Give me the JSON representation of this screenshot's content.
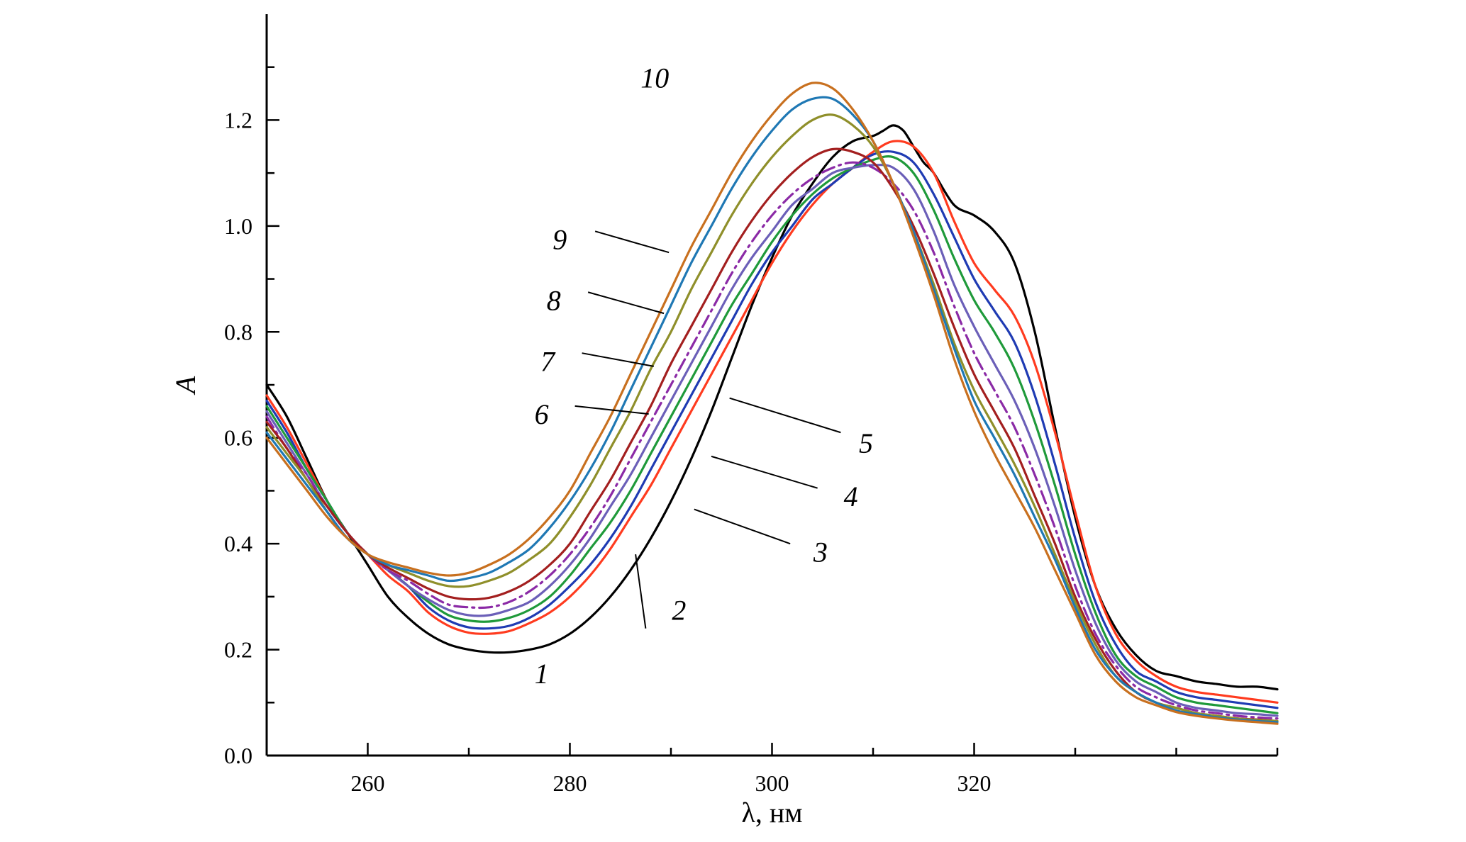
{
  "chart_data": {
    "type": "line",
    "title": "",
    "xlabel": "λ, нм",
    "ylabel": "A",
    "xlim": [
      250,
      350
    ],
    "ylim": [
      0,
      1.4
    ],
    "x_ticks": [
      260,
      280,
      300,
      320
    ],
    "y_ticks": [
      0.0,
      0.2,
      0.4,
      0.6,
      0.8,
      1.0,
      1.2
    ],
    "grid": false,
    "legend": "none",
    "series": [
      {
        "name": "1",
        "color": "#000000",
        "dash": "solid",
        "x": [
          250,
          252,
          254,
          256,
          258,
          260,
          262,
          264,
          266,
          268,
          270,
          272,
          274,
          276,
          278,
          280,
          282,
          284,
          286,
          288,
          290,
          292,
          294,
          296,
          298,
          300,
          302,
          304,
          306,
          308,
          310,
          311,
          312,
          313,
          314,
          315,
          316,
          318,
          320,
          322,
          324,
          326,
          328,
          330,
          332,
          334,
          336,
          338,
          340,
          342,
          344,
          346,
          348,
          350
        ],
        "y": [
          0.7,
          0.64,
          0.56,
          0.48,
          0.42,
          0.36,
          0.3,
          0.26,
          0.23,
          0.21,
          0.2,
          0.195,
          0.195,
          0.2,
          0.21,
          0.23,
          0.26,
          0.3,
          0.35,
          0.41,
          0.48,
          0.56,
          0.65,
          0.75,
          0.85,
          0.94,
          1.02,
          1.08,
          1.13,
          1.16,
          1.17,
          1.18,
          1.19,
          1.18,
          1.15,
          1.12,
          1.1,
          1.04,
          1.02,
          0.99,
          0.93,
          0.8,
          0.62,
          0.45,
          0.32,
          0.24,
          0.19,
          0.16,
          0.15,
          0.14,
          0.135,
          0.13,
          0.13,
          0.125
        ]
      },
      {
        "name": "2",
        "color": "#ff3b1f",
        "dash": "solid",
        "x": [
          250,
          252,
          254,
          256,
          258,
          260,
          262,
          264,
          266,
          268,
          270,
          272,
          274,
          276,
          278,
          280,
          282,
          284,
          286,
          288,
          290,
          292,
          294,
          296,
          298,
          300,
          302,
          304,
          306,
          308,
          310,
          312,
          314,
          316,
          318,
          320,
          322,
          324,
          326,
          328,
          330,
          332,
          334,
          336,
          338,
          340,
          342,
          344,
          346,
          348,
          350
        ],
        "y": [
          0.68,
          0.62,
          0.55,
          0.48,
          0.42,
          0.38,
          0.34,
          0.31,
          0.27,
          0.245,
          0.232,
          0.23,
          0.235,
          0.25,
          0.27,
          0.3,
          0.34,
          0.39,
          0.45,
          0.51,
          0.58,
          0.65,
          0.72,
          0.79,
          0.86,
          0.93,
          0.99,
          1.04,
          1.08,
          1.11,
          1.14,
          1.16,
          1.15,
          1.1,
          1.01,
          0.93,
          0.88,
          0.83,
          0.74,
          0.61,
          0.46,
          0.32,
          0.23,
          0.18,
          0.15,
          0.13,
          0.12,
          0.115,
          0.11,
          0.105,
          0.1
        ]
      },
      {
        "name": "3",
        "color": "#1f3bb3",
        "dash": "solid",
        "x": [
          250,
          252,
          254,
          256,
          258,
          260,
          262,
          264,
          266,
          268,
          270,
          272,
          274,
          276,
          278,
          280,
          282,
          284,
          286,
          288,
          290,
          292,
          294,
          296,
          298,
          300,
          302,
          304,
          306,
          308,
          310,
          312,
          314,
          316,
          318,
          320,
          322,
          324,
          326,
          328,
          330,
          332,
          334,
          336,
          338,
          340,
          342,
          344,
          346,
          348,
          350
        ],
        "y": [
          0.67,
          0.61,
          0.54,
          0.48,
          0.42,
          0.38,
          0.35,
          0.32,
          0.28,
          0.255,
          0.242,
          0.24,
          0.245,
          0.26,
          0.285,
          0.32,
          0.36,
          0.41,
          0.47,
          0.54,
          0.61,
          0.68,
          0.75,
          0.82,
          0.89,
          0.95,
          1.0,
          1.05,
          1.08,
          1.11,
          1.135,
          1.14,
          1.12,
          1.06,
          0.98,
          0.9,
          0.84,
          0.78,
          0.68,
          0.55,
          0.41,
          0.29,
          0.21,
          0.16,
          0.14,
          0.12,
          0.11,
          0.105,
          0.1,
          0.095,
          0.09
        ]
      },
      {
        "name": "4",
        "color": "#1f9a3a",
        "dash": "solid",
        "x": [
          250,
          252,
          254,
          256,
          258,
          260,
          262,
          264,
          266,
          268,
          270,
          272,
          274,
          276,
          278,
          280,
          282,
          284,
          286,
          288,
          290,
          292,
          294,
          296,
          298,
          300,
          302,
          304,
          306,
          308,
          310,
          312,
          314,
          316,
          318,
          320,
          322,
          324,
          326,
          328,
          330,
          332,
          334,
          336,
          338,
          340,
          342,
          344,
          346,
          348,
          350
        ],
        "y": [
          0.66,
          0.6,
          0.54,
          0.48,
          0.42,
          0.38,
          0.35,
          0.32,
          0.29,
          0.265,
          0.255,
          0.253,
          0.26,
          0.275,
          0.3,
          0.34,
          0.39,
          0.44,
          0.5,
          0.57,
          0.64,
          0.71,
          0.78,
          0.85,
          0.91,
          0.97,
          1.02,
          1.06,
          1.09,
          1.11,
          1.125,
          1.13,
          1.1,
          1.03,
          0.94,
          0.86,
          0.8,
          0.73,
          0.63,
          0.51,
          0.38,
          0.27,
          0.19,
          0.15,
          0.13,
          0.11,
          0.1,
          0.095,
          0.09,
          0.085,
          0.08
        ]
      },
      {
        "name": "5",
        "color": "#6b5fb8",
        "dash": "solid",
        "x": [
          250,
          252,
          254,
          256,
          258,
          260,
          262,
          264,
          266,
          268,
          270,
          272,
          274,
          276,
          278,
          280,
          282,
          284,
          286,
          288,
          290,
          292,
          294,
          296,
          298,
          300,
          302,
          304,
          306,
          308,
          310,
          312,
          314,
          316,
          318,
          320,
          322,
          324,
          326,
          328,
          330,
          332,
          334,
          336,
          338,
          340,
          342,
          344,
          346,
          348,
          350
        ],
        "y": [
          0.65,
          0.59,
          0.53,
          0.47,
          0.42,
          0.38,
          0.35,
          0.32,
          0.295,
          0.275,
          0.265,
          0.265,
          0.275,
          0.29,
          0.32,
          0.36,
          0.41,
          0.47,
          0.53,
          0.6,
          0.67,
          0.74,
          0.81,
          0.88,
          0.94,
          0.99,
          1.04,
          1.07,
          1.1,
          1.11,
          1.115,
          1.11,
          1.07,
          0.99,
          0.89,
          0.81,
          0.74,
          0.67,
          0.58,
          0.47,
          0.35,
          0.25,
          0.18,
          0.14,
          0.12,
          0.1,
          0.09,
          0.085,
          0.08,
          0.078,
          0.075
        ]
      },
      {
        "name": "6",
        "color": "#8b2aa6",
        "dash": "dashdot",
        "x": [
          250,
          252,
          254,
          256,
          258,
          260,
          262,
          264,
          266,
          268,
          270,
          272,
          274,
          276,
          278,
          280,
          282,
          284,
          286,
          288,
          290,
          292,
          294,
          296,
          298,
          300,
          302,
          304,
          306,
          308,
          310,
          312,
          314,
          316,
          318,
          320,
          322,
          324,
          326,
          328,
          330,
          332,
          334,
          336,
          338,
          340,
          342,
          344,
          346,
          348,
          350
        ],
        "y": [
          0.64,
          0.58,
          0.53,
          0.47,
          0.42,
          0.38,
          0.35,
          0.33,
          0.305,
          0.285,
          0.28,
          0.28,
          0.29,
          0.31,
          0.34,
          0.38,
          0.43,
          0.49,
          0.56,
          0.63,
          0.7,
          0.77,
          0.84,
          0.91,
          0.97,
          1.02,
          1.06,
          1.09,
          1.11,
          1.12,
          1.11,
          1.08,
          1.03,
          0.95,
          0.85,
          0.76,
          0.69,
          0.62,
          0.53,
          0.43,
          0.32,
          0.23,
          0.17,
          0.13,
          0.11,
          0.095,
          0.085,
          0.08,
          0.075,
          0.072,
          0.07
        ]
      },
      {
        "name": "7",
        "color": "#a31f1f",
        "dash": "solid",
        "x": [
          250,
          252,
          254,
          256,
          258,
          260,
          262,
          264,
          266,
          268,
          270,
          272,
          274,
          276,
          278,
          280,
          282,
          284,
          286,
          288,
          290,
          292,
          294,
          296,
          298,
          300,
          302,
          304,
          306,
          308,
          310,
          312,
          314,
          316,
          318,
          320,
          322,
          324,
          326,
          328,
          330,
          332,
          334,
          336,
          338,
          340,
          342,
          344,
          346,
          348,
          350
        ],
        "y": [
          0.63,
          0.58,
          0.52,
          0.47,
          0.42,
          0.38,
          0.355,
          0.335,
          0.315,
          0.3,
          0.295,
          0.298,
          0.31,
          0.33,
          0.36,
          0.4,
          0.46,
          0.52,
          0.59,
          0.66,
          0.74,
          0.81,
          0.88,
          0.95,
          1.01,
          1.06,
          1.1,
          1.13,
          1.145,
          1.14,
          1.12,
          1.07,
          1.0,
          0.91,
          0.81,
          0.72,
          0.65,
          0.58,
          0.49,
          0.4,
          0.3,
          0.22,
          0.16,
          0.12,
          0.1,
          0.09,
          0.08,
          0.075,
          0.07,
          0.068,
          0.065
        ]
      },
      {
        "name": "8",
        "color": "#8f8f2a",
        "dash": "solid",
        "x": [
          250,
          252,
          254,
          256,
          258,
          260,
          262,
          264,
          266,
          268,
          270,
          272,
          274,
          276,
          278,
          280,
          282,
          284,
          286,
          288,
          290,
          292,
          294,
          296,
          298,
          300,
          302,
          304,
          306,
          308,
          310,
          312,
          314,
          316,
          318,
          320,
          322,
          324,
          326,
          328,
          330,
          332,
          334,
          336,
          338,
          340,
          342,
          344,
          346,
          348,
          350
        ],
        "y": [
          0.62,
          0.57,
          0.52,
          0.46,
          0.41,
          0.38,
          0.36,
          0.345,
          0.33,
          0.32,
          0.32,
          0.33,
          0.345,
          0.37,
          0.4,
          0.45,
          0.51,
          0.58,
          0.65,
          0.73,
          0.8,
          0.88,
          0.95,
          1.02,
          1.08,
          1.13,
          1.17,
          1.2,
          1.21,
          1.19,
          1.15,
          1.08,
          0.99,
          0.89,
          0.78,
          0.69,
          0.62,
          0.55,
          0.47,
          0.38,
          0.29,
          0.21,
          0.15,
          0.12,
          0.1,
          0.09,
          0.08,
          0.075,
          0.07,
          0.067,
          0.065
        ]
      },
      {
        "name": "9",
        "color": "#1f78b4",
        "dash": "solid",
        "x": [
          250,
          252,
          254,
          256,
          258,
          260,
          262,
          264,
          266,
          268,
          270,
          272,
          274,
          276,
          278,
          280,
          282,
          284,
          286,
          288,
          290,
          292,
          294,
          296,
          298,
          300,
          302,
          304,
          306,
          308,
          310,
          312,
          314,
          316,
          318,
          320,
          322,
          324,
          326,
          328,
          330,
          332,
          334,
          336,
          338,
          340,
          342,
          344,
          346,
          348,
          350
        ],
        "y": [
          0.61,
          0.56,
          0.51,
          0.46,
          0.41,
          0.38,
          0.36,
          0.35,
          0.34,
          0.33,
          0.335,
          0.345,
          0.365,
          0.39,
          0.43,
          0.48,
          0.54,
          0.61,
          0.69,
          0.77,
          0.85,
          0.93,
          1.0,
          1.07,
          1.13,
          1.18,
          1.22,
          1.24,
          1.24,
          1.21,
          1.16,
          1.08,
          0.99,
          0.88,
          0.77,
          0.67,
          0.6,
          0.53,
          0.45,
          0.37,
          0.28,
          0.2,
          0.15,
          0.12,
          0.1,
          0.085,
          0.078,
          0.072,
          0.068,
          0.065,
          0.063
        ]
      },
      {
        "name": "10",
        "color": "#c8701f",
        "dash": "solid",
        "x": [
          250,
          252,
          254,
          256,
          258,
          260,
          262,
          264,
          266,
          268,
          270,
          272,
          274,
          276,
          278,
          280,
          282,
          284,
          286,
          288,
          290,
          292,
          294,
          296,
          298,
          300,
          302,
          304,
          306,
          308,
          310,
          312,
          314,
          316,
          318,
          320,
          322,
          324,
          326,
          328,
          330,
          332,
          334,
          336,
          338,
          340,
          342,
          344,
          346,
          348,
          350
        ],
        "y": [
          0.6,
          0.55,
          0.5,
          0.45,
          0.41,
          0.38,
          0.365,
          0.355,
          0.345,
          0.34,
          0.345,
          0.36,
          0.38,
          0.41,
          0.45,
          0.5,
          0.57,
          0.64,
          0.72,
          0.8,
          0.88,
          0.96,
          1.03,
          1.1,
          1.16,
          1.21,
          1.25,
          1.27,
          1.26,
          1.22,
          1.16,
          1.08,
          0.98,
          0.87,
          0.75,
          0.65,
          0.57,
          0.5,
          0.43,
          0.35,
          0.27,
          0.19,
          0.14,
          0.11,
          0.095,
          0.082,
          0.075,
          0.07,
          0.066,
          0.063,
          0.06
        ]
      }
    ],
    "annotations": [
      {
        "text": "1",
        "x": 277.2,
        "y": 0.155
      },
      {
        "text": "2",
        "x": 290.8,
        "y": 0.275
      },
      {
        "text": "3",
        "x": 304.8,
        "y": 0.385
      },
      {
        "text": "4",
        "x": 307.8,
        "y": 0.49
      },
      {
        "text": "5",
        "x": 309.3,
        "y": 0.59
      },
      {
        "text": "6",
        "x": 277.2,
        "y": 0.645
      },
      {
        "text": "7",
        "x": 277.8,
        "y": 0.745
      },
      {
        "text": "8",
        "x": 278.4,
        "y": 0.86
      },
      {
        "text": "9",
        "x": 279.0,
        "y": 0.975
      },
      {
        "text": "10",
        "x": 288.4,
        "y": 1.28
      }
    ],
    "leaders": [
      {
        "label": "2",
        "x1": 287.5,
        "y1": 0.24,
        "x2": 286.5,
        "y2": 0.38
      },
      {
        "label": "3",
        "x1": 301.8,
        "y1": 0.4,
        "x2": 292.3,
        "y2": 0.465
      },
      {
        "label": "4",
        "x1": 304.5,
        "y1": 0.505,
        "x2": 294.0,
        "y2": 0.565
      },
      {
        "label": "5",
        "x1": 306.8,
        "y1": 0.61,
        "x2": 295.8,
        "y2": 0.675
      },
      {
        "label": "6",
        "x1": 280.5,
        "y1": 0.66,
        "x2": 287.8,
        "y2": 0.645
      },
      {
        "label": "7",
        "x1": 281.2,
        "y1": 0.76,
        "x2": 288.3,
        "y2": 0.735
      },
      {
        "label": "8",
        "x1": 281.8,
        "y1": 0.875,
        "x2": 289.3,
        "y2": 0.835
      },
      {
        "label": "9",
        "x1": 282.5,
        "y1": 0.99,
        "x2": 289.8,
        "y2": 0.95
      }
    ]
  }
}
